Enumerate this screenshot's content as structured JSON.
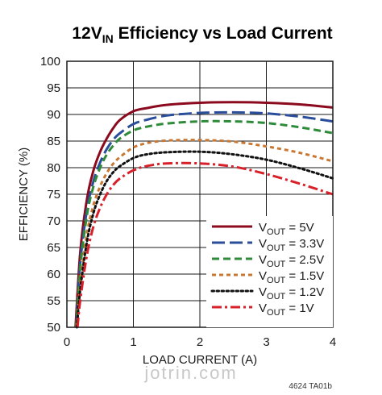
{
  "chart_data": {
    "type": "line",
    "title": {
      "main": "12V",
      "sub": "IN",
      "rest": " Efficiency vs Load Current"
    },
    "xlabel": "LOAD CURRENT (A)",
    "ylabel": "EFFICIENCY (%)",
    "xlim": [
      0,
      4
    ],
    "ylim": [
      50,
      100
    ],
    "x_ticks": [
      "0",
      "1",
      "2",
      "3",
      "4"
    ],
    "y_ticks": [
      "50",
      "55",
      "60",
      "65",
      "70",
      "75",
      "80",
      "85",
      "90",
      "95",
      "100"
    ],
    "grid": true,
    "legend_position": "bottom-right",
    "series": [
      {
        "label_pre": "V",
        "label_sub": "OUT",
        "label_post": " = 5V",
        "color": "#8b0a1e",
        "dash": "solid",
        "x": [
          0.13,
          0.2,
          0.3,
          0.4,
          0.5,
          0.6,
          0.7,
          0.8,
          1.0,
          1.2,
          1.5,
          2.0,
          2.5,
          3.0,
          3.5,
          4.0
        ],
        "y": [
          50,
          64,
          74,
          79.5,
          83,
          85.5,
          87.5,
          89,
          90.6,
          91.2,
          91.8,
          92.2,
          92.3,
          92.2,
          91.9,
          91.3
        ]
      },
      {
        "label_pre": "V",
        "label_sub": "OUT",
        "label_post": " = 3.3V",
        "color": "#2a4e9a",
        "dash": "long-dash",
        "x": [
          0.14,
          0.2,
          0.3,
          0.4,
          0.5,
          0.6,
          0.7,
          0.8,
          1.0,
          1.2,
          1.5,
          2.0,
          2.5,
          3.0,
          3.5,
          4.0
        ],
        "y": [
          50,
          62,
          72,
          77.5,
          81,
          83.5,
          85.3,
          86.5,
          88.2,
          89.0,
          89.8,
          90.3,
          90.4,
          90.2,
          89.6,
          88.7
        ]
      },
      {
        "label_pre": "V",
        "label_sub": "OUT",
        "label_post": " = 2.5V",
        "color": "#2e8b3a",
        "dash": "dash",
        "x": [
          0.14,
          0.2,
          0.3,
          0.4,
          0.5,
          0.6,
          0.7,
          0.8,
          1.0,
          1.2,
          1.5,
          2.0,
          2.5,
          3.0,
          3.5,
          4.0
        ],
        "y": [
          50,
          61,
          71,
          76.5,
          80,
          82.5,
          84.2,
          85.5,
          87,
          87.7,
          88.3,
          88.7,
          88.7,
          88.4,
          87.6,
          86.5
        ]
      },
      {
        "label_pre": "V",
        "label_sub": "OUT",
        "label_post": " = 1.5V",
        "color": "#c87832",
        "dash": "short-dash",
        "x": [
          0.15,
          0.2,
          0.3,
          0.4,
          0.5,
          0.6,
          0.7,
          0.8,
          1.0,
          1.2,
          1.5,
          2.0,
          2.5,
          3.0,
          3.5,
          4.0
        ],
        "y": [
          50,
          58,
          67.5,
          73,
          76.5,
          79,
          80.8,
          82,
          83.8,
          84.6,
          85.1,
          85.2,
          84.9,
          84.0,
          82.8,
          81.2
        ]
      },
      {
        "label_pre": "V",
        "label_sub": "OUT",
        "label_post": " = 1.2V",
        "color": "#111111",
        "dash": "dot",
        "x": [
          0.15,
          0.2,
          0.3,
          0.4,
          0.5,
          0.6,
          0.7,
          0.8,
          1.0,
          1.2,
          1.5,
          2.0,
          2.5,
          3.0,
          3.5,
          4.0
        ],
        "y": [
          50,
          57,
          66,
          71.5,
          75,
          77.5,
          79.2,
          80.3,
          81.8,
          82.5,
          82.9,
          83.0,
          82.5,
          81.5,
          79.9,
          78.0
        ]
      },
      {
        "label_pre": "V",
        "label_sub": "OUT",
        "label_post": " = 1V",
        "color": "#d8202a",
        "dash": "dash-dot",
        "x": [
          0.16,
          0.2,
          0.3,
          0.4,
          0.5,
          0.6,
          0.7,
          0.8,
          1.0,
          1.2,
          1.5,
          2.0,
          2.5,
          3.0,
          3.5,
          4.0
        ],
        "y": [
          50,
          55,
          63.5,
          69,
          72.5,
          75,
          76.8,
          78,
          79.5,
          80.3,
          80.8,
          80.8,
          80.2,
          78.8,
          77.0,
          75.0
        ]
      }
    ],
    "annotation": "4624 TA01b"
  },
  "watermark": "jotrin.com"
}
